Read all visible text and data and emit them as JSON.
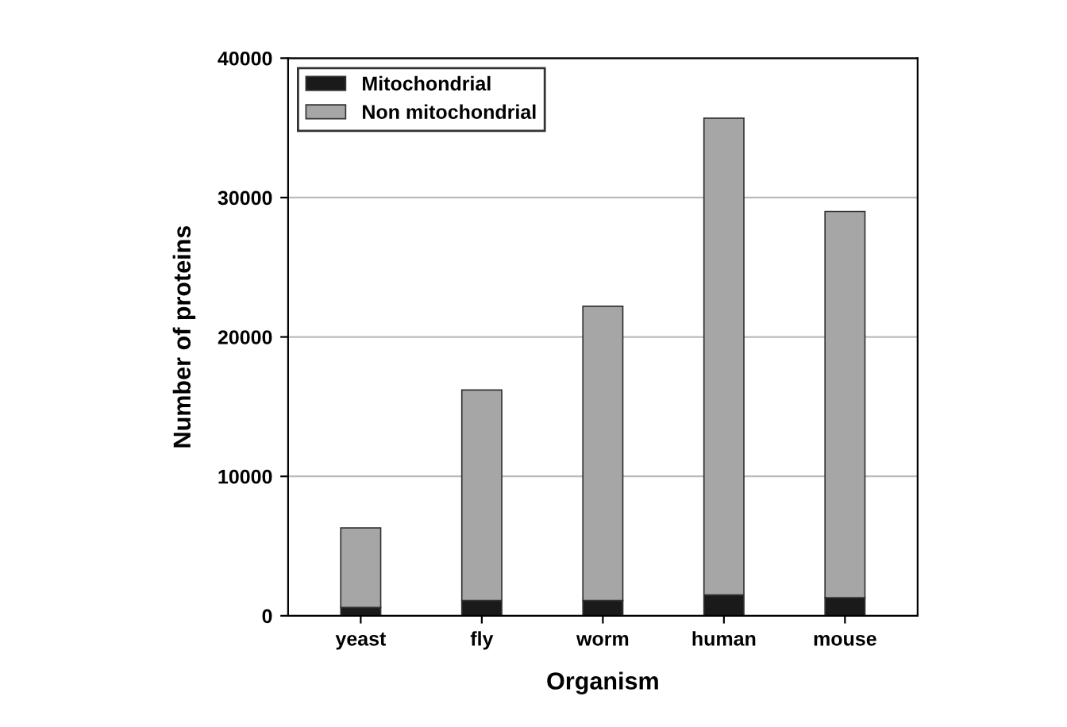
{
  "chart_data": {
    "type": "bar",
    "stacked": true,
    "xlabel": "Organism",
    "ylabel": "Number of proteins",
    "categories": [
      "yeast",
      "fly",
      "worm",
      "human",
      "mouse"
    ],
    "series": [
      {
        "name": "Mitochondrial",
        "color": "#1a1a1a",
        "values": [
          600,
          1100,
          1100,
          1500,
          1300
        ]
      },
      {
        "name": "Non mitochondrial",
        "color": "#a6a6a6",
        "values": [
          5700,
          15100,
          21100,
          34200,
          27700
        ]
      }
    ],
    "ylim": [
      0,
      40000
    ],
    "yticks": [
      0,
      10000,
      20000,
      30000,
      40000
    ],
    "grid": "y",
    "legend": "top left"
  }
}
